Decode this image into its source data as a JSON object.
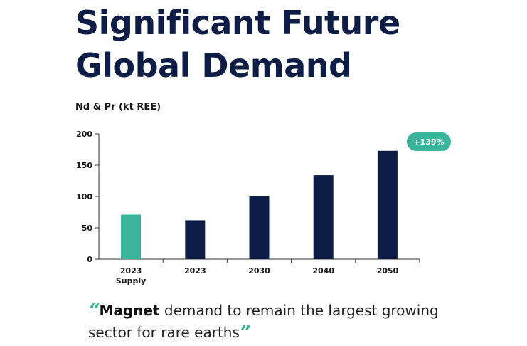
{
  "header": {
    "title_line1": "Significant Future",
    "title_line2": "Global Demand"
  },
  "chart_data": {
    "type": "bar",
    "ylabel": "Nd & Pr (kt REE)",
    "categories": [
      "2023\nSupply",
      "2023",
      "2030",
      "2040",
      "2050"
    ],
    "values": [
      71,
      62,
      100,
      134,
      173
    ],
    "ylim": [
      0,
      200
    ],
    "yticks": [
      0,
      50,
      100,
      150,
      200
    ],
    "badge": "+139%",
    "colors": [
      "#3bb49c",
      "#0d1d45",
      "#0d1d45",
      "#0d1d45",
      "#0d1d45"
    ]
  },
  "quote": {
    "open_mark": "“",
    "bold": "Magnet",
    "text": " demand to remain the largest growing sector for rare earths",
    "close_mark": "”"
  }
}
